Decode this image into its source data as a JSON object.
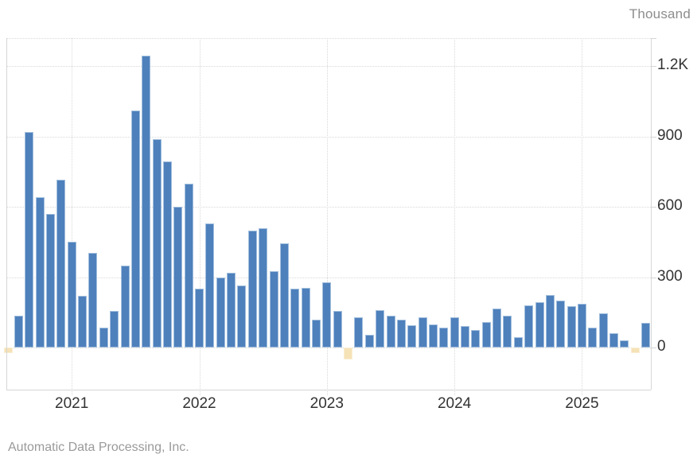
{
  "chart": {
    "unit_label": "Thousand"
  },
  "source": {
    "text": "Automatic Data Processing, Inc."
  },
  "colors": {
    "bar_positive": "#4e80bc",
    "bar_positive_border": "#a2bfdd",
    "bar_negative": "#f5e2b6",
    "bar_negative_border": "#f9eed4",
    "grid": "#d9d9d9",
    "axis": "#d6d6d6",
    "tick_label": "#333333",
    "muted_text": "#9a9a9a"
  },
  "chart_data": {
    "type": "bar",
    "title": "",
    "unit_label": "Thousand",
    "xlabel": "",
    "ylabel": "Thousand",
    "ylim": [
      -180,
      1320
    ],
    "grid": "dotted",
    "legend": "none",
    "note": "positive bars blue, negative bars beige",
    "x": [
      "2020-07",
      "2020-08",
      "2020-09",
      "2020-10",
      "2020-11",
      "2020-12",
      "2021-01",
      "2021-02",
      "2021-03",
      "2021-04",
      "2021-05",
      "2021-06",
      "2021-07",
      "2021-08",
      "2021-09",
      "2021-10",
      "2021-11",
      "2021-12",
      "2022-01",
      "2022-02",
      "2022-03",
      "2022-04",
      "2022-05",
      "2022-06",
      "2022-07",
      "2022-08",
      "2022-09",
      "2022-10",
      "2022-11",
      "2022-12",
      "2023-01",
      "2023-02",
      "2023-03",
      "2023-04",
      "2023-05",
      "2023-06",
      "2023-07",
      "2023-08",
      "2023-09",
      "2023-10",
      "2023-11",
      "2023-12",
      "2024-01",
      "2024-02",
      "2024-03",
      "2024-04",
      "2024-05",
      "2024-06",
      "2024-07",
      "2024-08",
      "2024-09",
      "2024-10",
      "2024-11",
      "2024-12",
      "2025-01",
      "2025-02",
      "2025-03",
      "2025-04",
      "2025-05",
      "2025-06",
      "2025-07"
    ],
    "values": [
      -25,
      135,
      920,
      640,
      570,
      715,
      450,
      220,
      405,
      85,
      155,
      350,
      1010,
      1245,
      890,
      795,
      600,
      700,
      250,
      530,
      300,
      320,
      265,
      500,
      510,
      325,
      445,
      250,
      255,
      120,
      280,
      155,
      -50,
      130,
      55,
      160,
      135,
      120,
      95,
      130,
      100,
      85,
      130,
      90,
      75,
      110,
      165,
      135,
      45,
      180,
      195,
      225,
      200,
      175,
      185,
      85,
      145,
      60,
      30,
      -22,
      105
    ],
    "y_ticks": [
      {
        "label": "0",
        "value": 0
      },
      {
        "label": "300",
        "value": 300
      },
      {
        "label": "600",
        "value": 600
      },
      {
        "label": "900",
        "value": 900
      },
      {
        "label": "1.2K",
        "value": 1200
      }
    ],
    "x_ticks": [
      {
        "label": "2021",
        "month": "2021-01"
      },
      {
        "label": "2022",
        "month": "2022-01"
      },
      {
        "label": "2023",
        "month": "2023-01"
      },
      {
        "label": "2024",
        "month": "2024-01"
      },
      {
        "label": "2025",
        "month": "2025-01"
      }
    ]
  }
}
